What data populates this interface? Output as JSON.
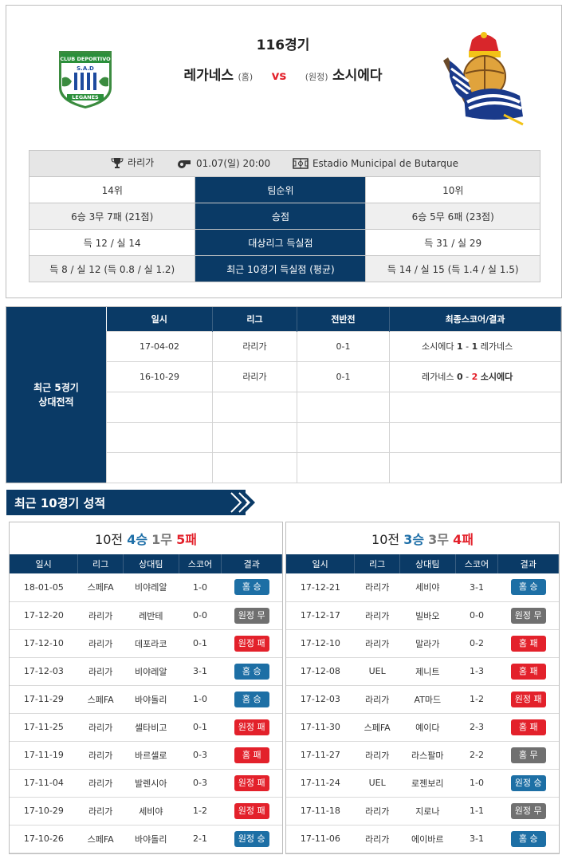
{
  "header": {
    "match_number": "116경기",
    "home_team": "레가네스",
    "home_tag": "(홈)",
    "vs": "vs",
    "away_tag": "(원정)",
    "away_team": "소시에다",
    "home_logo_text": [
      "CLUB DEPORTIVO",
      "S.A.D",
      "LEGANES"
    ]
  },
  "meta": {
    "league": "라리가",
    "datetime": "01.07(일) 20:00",
    "stadium": "Estadio Municipal de Butarque"
  },
  "stats": [
    {
      "home": "14위",
      "label": "팀순위",
      "away": "10위"
    },
    {
      "home": "6승 3무 7패 (21점)",
      "label": "승점",
      "away": "6승 5무 6패 (23점)"
    },
    {
      "home": "득 12 / 실 14",
      "label": "대상리그 득실점",
      "away": "득 31 / 실 29"
    },
    {
      "home": "득 8 / 실 12 (득 0.8 / 실 1.2)",
      "label": "최근 10경기 득실점 (평균)",
      "away": "득 14 / 실 15 (득 1.4 / 실 1.5)"
    }
  ],
  "h2h": {
    "label_line1": "최근 5경기",
    "label_line2": "상대전적",
    "columns": [
      "일시",
      "리그",
      "전반전",
      "최종스코어/결과"
    ],
    "rows": [
      {
        "date": "17-04-02",
        "league": "라리가",
        "half": "0-1",
        "left_team": "소시에다",
        "left_score": "1",
        "dash": "-",
        "right_score": "1",
        "right_team": "레가네스"
      },
      {
        "date": "16-10-29",
        "league": "라리가",
        "half": "0-1",
        "left_team": "레가네스",
        "left_score": "0",
        "dash": "-",
        "right_score": "2",
        "right_team": "소시에다"
      }
    ]
  },
  "recent_section_title": "최근 10경기 성적",
  "recent": {
    "columns": [
      "일시",
      "리그",
      "상대팀",
      "스코어",
      "결과"
    ],
    "home": {
      "prefix": "10전 ",
      "wins": "4승",
      "draws": "1무",
      "losses": "5패",
      "rows": [
        {
          "date": "18-01-05",
          "league": "스페FA",
          "opp": "비야레알",
          "score": "1-0",
          "result": "홈 승",
          "type": "win"
        },
        {
          "date": "17-12-20",
          "league": "라리가",
          "opp": "레반테",
          "score": "0-0",
          "result": "원정 무",
          "type": "draw"
        },
        {
          "date": "17-12-10",
          "league": "라리가",
          "opp": "데포라코",
          "score": "0-1",
          "result": "원정 패",
          "type": "lose"
        },
        {
          "date": "17-12-03",
          "league": "라리가",
          "opp": "비야레알",
          "score": "3-1",
          "result": "홈 승",
          "type": "win"
        },
        {
          "date": "17-11-29",
          "league": "스페FA",
          "opp": "바야돌리",
          "score": "1-0",
          "result": "홈 승",
          "type": "win"
        },
        {
          "date": "17-11-25",
          "league": "라리가",
          "opp": "셀타비고",
          "score": "0-1",
          "result": "원정 패",
          "type": "lose"
        },
        {
          "date": "17-11-19",
          "league": "라리가",
          "opp": "바르셀로",
          "score": "0-3",
          "result": "홈 패",
          "type": "lose"
        },
        {
          "date": "17-11-04",
          "league": "라리가",
          "opp": "발렌시아",
          "score": "0-3",
          "result": "원정 패",
          "type": "lose"
        },
        {
          "date": "17-10-29",
          "league": "라리가",
          "opp": "세비야",
          "score": "1-2",
          "result": "원정 패",
          "type": "lose"
        },
        {
          "date": "17-10-26",
          "league": "스페FA",
          "opp": "바야돌리",
          "score": "2-1",
          "result": "원정 승",
          "type": "win"
        }
      ]
    },
    "away": {
      "prefix": "10전 ",
      "wins": "3승",
      "draws": "3무",
      "losses": "4패",
      "rows": [
        {
          "date": "17-12-21",
          "league": "라리가",
          "opp": "세비야",
          "score": "3-1",
          "result": "홈 승",
          "type": "win"
        },
        {
          "date": "17-12-17",
          "league": "라리가",
          "opp": "빌바오",
          "score": "0-0",
          "result": "원정 무",
          "type": "draw"
        },
        {
          "date": "17-12-10",
          "league": "라리가",
          "opp": "말라가",
          "score": "0-2",
          "result": "홈 패",
          "type": "lose"
        },
        {
          "date": "17-12-08",
          "league": "UEL",
          "opp": "제니트",
          "score": "1-3",
          "result": "홈 패",
          "type": "lose"
        },
        {
          "date": "17-12-03",
          "league": "라리가",
          "opp": "AT마드",
          "score": "1-2",
          "result": "원정 패",
          "type": "lose"
        },
        {
          "date": "17-11-30",
          "league": "스페FA",
          "opp": "예이다",
          "score": "2-3",
          "result": "홈 패",
          "type": "lose"
        },
        {
          "date": "17-11-27",
          "league": "라리가",
          "opp": "라스팔마",
          "score": "2-2",
          "result": "홈 무",
          "type": "draw"
        },
        {
          "date": "17-11-24",
          "league": "UEL",
          "opp": "로젠보리",
          "score": "1-0",
          "result": "원정 승",
          "type": "win"
        },
        {
          "date": "17-11-18",
          "league": "라리가",
          "opp": "지로나",
          "score": "1-1",
          "result": "원정 무",
          "type": "draw"
        },
        {
          "date": "17-11-06",
          "league": "라리가",
          "opp": "에이바르",
          "score": "3-1",
          "result": "홈 승",
          "type": "win"
        }
      ]
    }
  },
  "colors": {
    "navy": "#0a3a66",
    "win": "#1d6fa5",
    "draw": "#707070",
    "lose": "#e3212b"
  }
}
